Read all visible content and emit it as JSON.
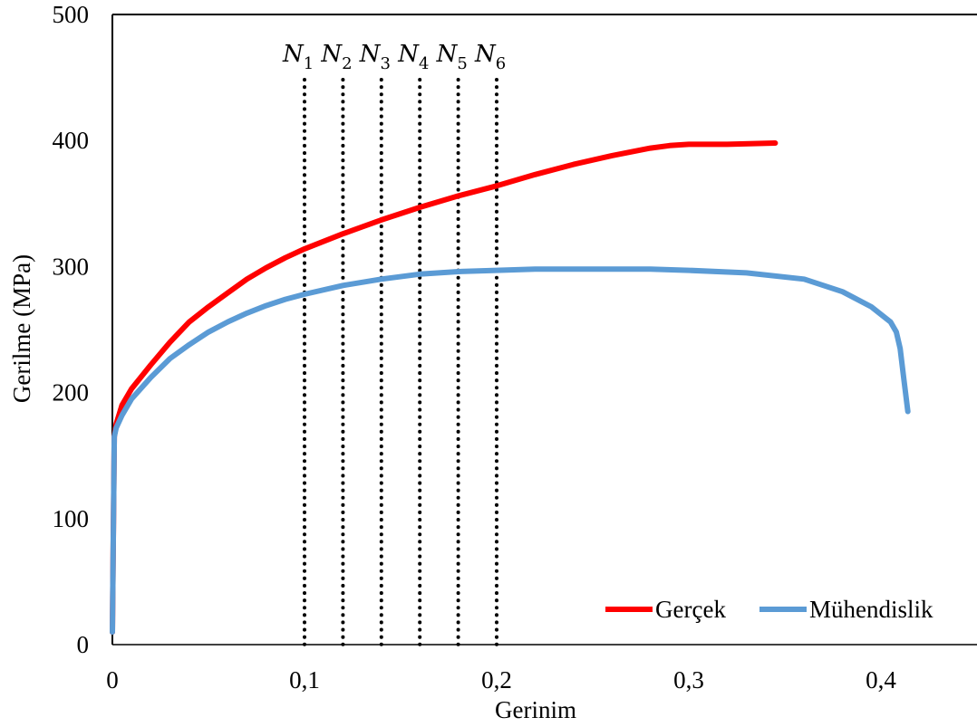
{
  "chart_data": {
    "type": "line",
    "xlabel": "Gerinim",
    "ylabel": "Gerilme (MPa)",
    "xlim": [
      0,
      0.45
    ],
    "ylim": [
      0,
      500
    ],
    "x_ticks": [
      {
        "value": 0,
        "label": "0"
      },
      {
        "value": 0.1,
        "label": "0,1"
      },
      {
        "value": 0.2,
        "label": "0,2"
      },
      {
        "value": 0.3,
        "label": "0,3"
      },
      {
        "value": 0.4,
        "label": "0,4"
      }
    ],
    "y_ticks": [
      {
        "value": 0,
        "label": "0"
      },
      {
        "value": 100,
        "label": "100"
      },
      {
        "value": 200,
        "label": "200"
      },
      {
        "value": 300,
        "label": "300"
      },
      {
        "value": 400,
        "label": "400"
      },
      {
        "value": 500,
        "label": "500"
      }
    ],
    "grid": false,
    "legend_position": "bottom-right",
    "series": [
      {
        "name": "Gerçek",
        "color": "#ff0000",
        "x": [
          0,
          0.001,
          0.002,
          0.005,
          0.01,
          0.02,
          0.03,
          0.04,
          0.05,
          0.06,
          0.07,
          0.08,
          0.09,
          0.1,
          0.12,
          0.14,
          0.16,
          0.18,
          0.2,
          0.22,
          0.24,
          0.26,
          0.28,
          0.29,
          0.3,
          0.32,
          0.345
        ],
        "y": [
          10,
          165,
          175,
          190,
          203,
          222,
          240,
          256,
          268,
          279,
          290,
          299,
          307,
          314,
          326,
          337,
          347,
          356,
          364,
          373,
          381,
          388,
          394,
          396,
          397,
          397,
          398
        ]
      },
      {
        "name": "Mühendislik",
        "color": "#5b9bd5",
        "x": [
          0,
          0.001,
          0.002,
          0.005,
          0.01,
          0.02,
          0.03,
          0.04,
          0.05,
          0.06,
          0.07,
          0.08,
          0.09,
          0.1,
          0.12,
          0.14,
          0.16,
          0.18,
          0.2,
          0.22,
          0.25,
          0.28,
          0.3,
          0.33,
          0.36,
          0.38,
          0.395,
          0.405,
          0.408,
          0.41,
          0.412,
          0.414
        ],
        "y": [
          10,
          165,
          172,
          182,
          195,
          212,
          227,
          238,
          248,
          256,
          263,
          269,
          274,
          278,
          285,
          290,
          294,
          296,
          297,
          298,
          298,
          298,
          297,
          295,
          290,
          280,
          268,
          256,
          248,
          235,
          210,
          185
        ]
      }
    ],
    "vertical_lines": [
      {
        "x": 0.1,
        "label": "N",
        "sub": "1"
      },
      {
        "x": 0.12,
        "label": "N",
        "sub": "2"
      },
      {
        "x": 0.14,
        "label": "N",
        "sub": "3"
      },
      {
        "x": 0.16,
        "label": "N",
        "sub": "4"
      },
      {
        "x": 0.18,
        "label": "N",
        "sub": "5"
      },
      {
        "x": 0.2,
        "label": "N",
        "sub": "6"
      }
    ]
  }
}
